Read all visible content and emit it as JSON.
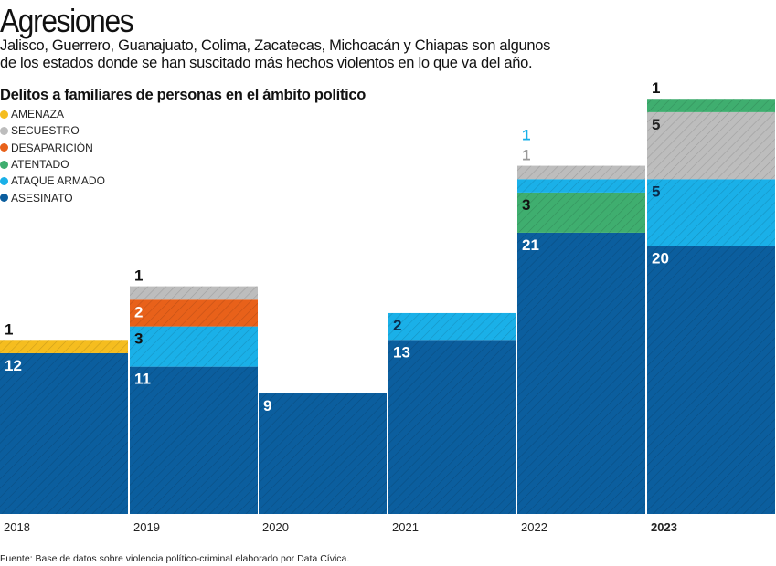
{
  "title": "Agresiones",
  "subtitle_lines": [
    "Jalisco, Guerrero, Guanajuato, Colima, Zacatecas, Michoacán y Chiapas son algunos",
    "de los estados donde se han suscitado más  hechos violentos en lo que va del año."
  ],
  "footer": "Fuente: Base de datos sobre violencia político-criminal elaborado por Data Cívica.",
  "chart_data": {
    "type": "bar",
    "stacked": true,
    "title": "Delitos a familiares de personas en el ámbito político",
    "categories": [
      "2018",
      "2019",
      "2020",
      "2021",
      "2022",
      "2023"
    ],
    "highlighted_category": "2023",
    "legend_position": "top-left",
    "legend": [
      {
        "name": "AMENAZA",
        "color": "#f5bd1f"
      },
      {
        "name": "SECUESTRO",
        "color": "#bdbdbd"
      },
      {
        "name": "DESAPARICIÓN",
        "color": "#e8611a"
      },
      {
        "name": "ATENTADO",
        "color": "#3fae6f"
      },
      {
        "name": "ATAQUE ARMADO",
        "color": "#1ab0e8"
      },
      {
        "name": "ASESINATO",
        "color": "#0b5e9e"
      }
    ],
    "bars": [
      {
        "year": "2018",
        "segments": [
          {
            "series": "ASESINATO",
            "value": 12,
            "label": "12",
            "label_color": "#ffffff",
            "label_pos": "inside"
          },
          {
            "series": "AMENAZA",
            "value": 1,
            "label": "1",
            "label_color": "#111111",
            "label_pos": "above"
          }
        ]
      },
      {
        "year": "2019",
        "segments": [
          {
            "series": "ASESINATO",
            "value": 11,
            "label": "11",
            "label_color": "#ffffff",
            "label_pos": "inside"
          },
          {
            "series": "ATAQUE ARMADO",
            "value": 3,
            "label": "3",
            "label_color": "#111111",
            "label_pos": "inside"
          },
          {
            "series": "DESAPARICIÓN",
            "value": 2,
            "label": "2",
            "label_color": "#ffffff",
            "label_pos": "inside"
          },
          {
            "series": "SECUESTRO",
            "value": 1,
            "label": "1",
            "label_color": "#111111",
            "label_pos": "above"
          }
        ]
      },
      {
        "year": "2020",
        "segments": [
          {
            "series": "ASESINATO",
            "value": 9,
            "label": "9",
            "label_color": "#ffffff",
            "label_pos": "inside"
          }
        ]
      },
      {
        "year": "2021",
        "segments": [
          {
            "series": "ASESINATO",
            "value": 13,
            "label": "13",
            "label_color": "#ffffff",
            "label_pos": "inside"
          },
          {
            "series": "ATAQUE ARMADO",
            "value": 2,
            "label": "2",
            "label_color": "#0b2a4a",
            "label_pos": "inside"
          }
        ]
      },
      {
        "year": "2022",
        "segments": [
          {
            "series": "ASESINATO",
            "value": 21,
            "label": "21",
            "label_color": "#ffffff",
            "label_pos": "inside"
          },
          {
            "series": "ATENTADO",
            "value": 3,
            "label": "3",
            "label_color": "#111111",
            "label_pos": "inside"
          },
          {
            "series": "ATAQUE ARMADO",
            "value": 1,
            "label": "1",
            "label_color": "#1ab0e8",
            "label_pos": "above"
          },
          {
            "series": "SECUESTRO",
            "value": 1,
            "label": "1",
            "label_color": "#9a9a9a",
            "label_pos": "above"
          }
        ]
      },
      {
        "year": "2023",
        "segments": [
          {
            "series": "ASESINATO",
            "value": 20,
            "label": "20",
            "label_color": "#ffffff",
            "label_pos": "inside"
          },
          {
            "series": "ATAQUE ARMADO",
            "value": 5,
            "label": "5",
            "label_color": "#0b2a4a",
            "label_pos": "inside"
          },
          {
            "series": "SECUESTRO",
            "value": 5,
            "label": "5",
            "label_color": "#222222",
            "label_pos": "inside"
          },
          {
            "series": "ATENTADO",
            "value": 1,
            "label": "1",
            "label_color": "#111111",
            "label_pos": "above"
          }
        ]
      }
    ]
  }
}
